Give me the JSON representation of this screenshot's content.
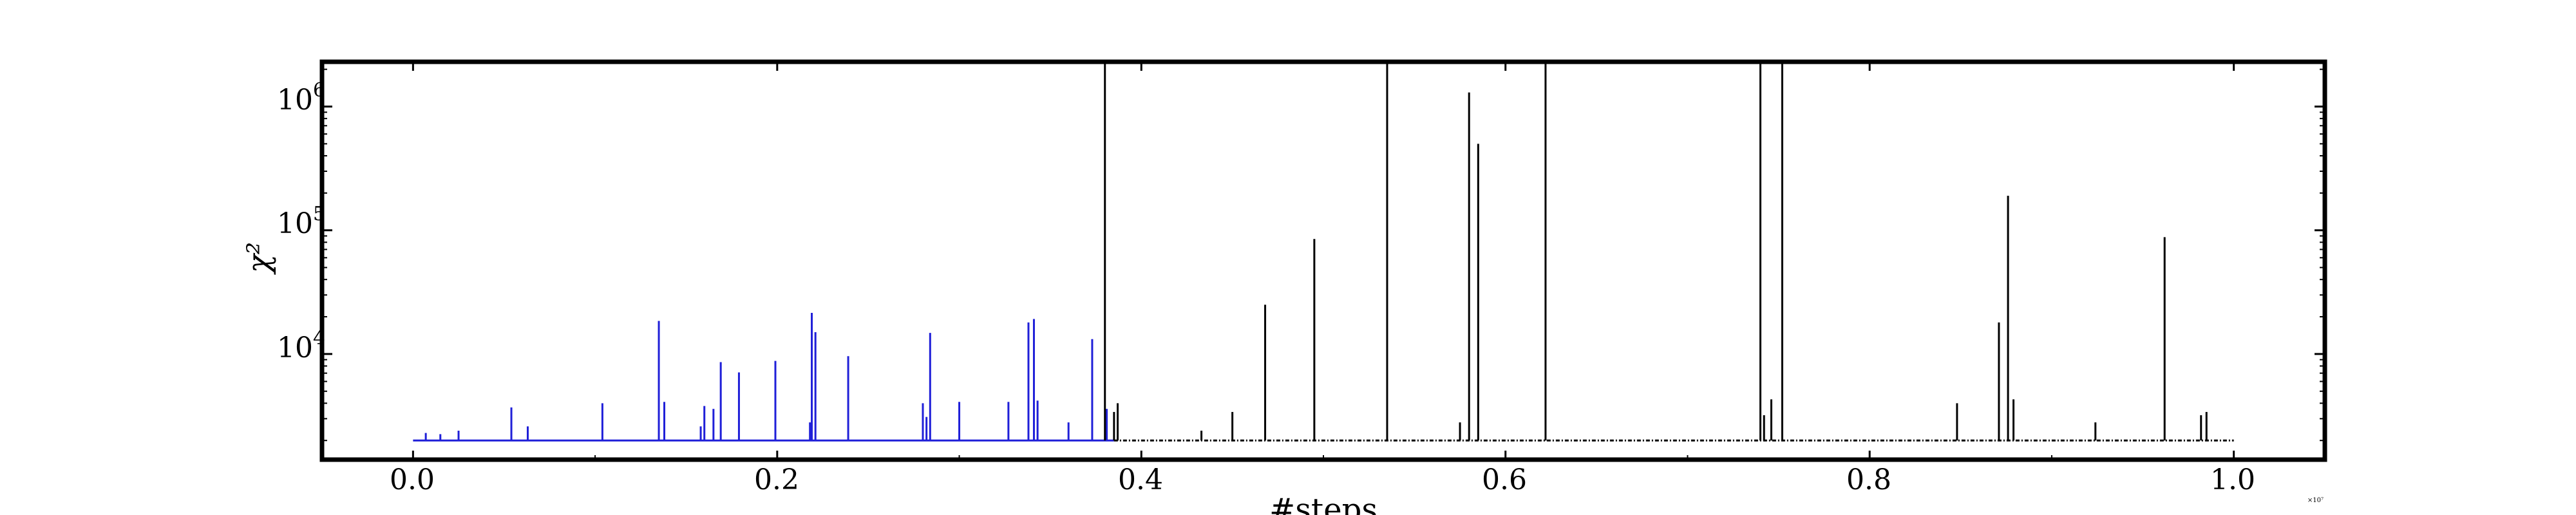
{
  "chart_data": {
    "type": "line",
    "xlabel": "#steps",
    "ylabel": "χ²",
    "x_scale_label": "×10⁷",
    "x_ticks": [
      "0.0",
      "0.2",
      "0.4",
      "0.6",
      "0.8",
      "1.0"
    ],
    "y_ticks": [
      {
        "base": "10",
        "exp": "4",
        "value": 10000
      },
      {
        "base": "10",
        "exp": "5",
        "value": 100000
      },
      {
        "base": "10",
        "exp": "6",
        "value": 1000000
      }
    ],
    "y_scale": "log",
    "xlim": [
      -0.05,
      1.05
    ],
    "ylim": [
      1400,
      2300000
    ],
    "baseline": 2000,
    "grid": false,
    "legend": "none",
    "series": [
      {
        "color": "#1f1fd8",
        "x_range": [
          0.0,
          0.385
        ],
        "spikes": [
          [
            0.007,
            2300
          ],
          [
            0.015,
            2250
          ],
          [
            0.025,
            2400
          ],
          [
            0.054,
            3700
          ],
          [
            0.063,
            2600
          ],
          [
            0.104,
            4000
          ],
          [
            0.135,
            18500
          ],
          [
            0.138,
            4100
          ],
          [
            0.158,
            2600
          ],
          [
            0.16,
            3800
          ],
          [
            0.165,
            3600
          ],
          [
            0.169,
            8600
          ],
          [
            0.179,
            7100
          ],
          [
            0.199,
            8800
          ],
          [
            0.218,
            2800
          ],
          [
            0.219,
            21500
          ],
          [
            0.221,
            15000
          ],
          [
            0.239,
            9600
          ],
          [
            0.28,
            4000
          ],
          [
            0.282,
            3100
          ],
          [
            0.284,
            14800
          ],
          [
            0.3,
            4100
          ],
          [
            0.327,
            4100
          ],
          [
            0.338,
            18000
          ],
          [
            0.341,
            19200
          ],
          [
            0.343,
            4200
          ],
          [
            0.36,
            2800
          ],
          [
            0.373,
            13200
          ],
          [
            0.381,
            3600
          ]
        ]
      },
      {
        "color": "#000000",
        "x_range": [
          0.385,
          1.0
        ],
        "spikes": [
          [
            0.38,
            2300000
          ],
          [
            0.385,
            3400
          ],
          [
            0.387,
            4000
          ],
          [
            0.433,
            2400
          ],
          [
            0.45,
            3400
          ],
          [
            0.468,
            25000
          ],
          [
            0.495,
            85000
          ],
          [
            0.535,
            2300000
          ],
          [
            0.575,
            2800
          ],
          [
            0.58,
            1300000
          ],
          [
            0.585,
            500000
          ],
          [
            0.622,
            2300000
          ],
          [
            0.74,
            2300000
          ],
          [
            0.742,
            3200
          ],
          [
            0.746,
            4300
          ],
          [
            0.752,
            2300000
          ],
          [
            0.848,
            4000
          ],
          [
            0.871,
            18000
          ],
          [
            0.876,
            190000
          ],
          [
            0.879,
            4300
          ],
          [
            0.924,
            2800
          ],
          [
            0.962,
            88000
          ],
          [
            0.982,
            3200
          ],
          [
            0.985,
            3400
          ]
        ]
      }
    ]
  }
}
